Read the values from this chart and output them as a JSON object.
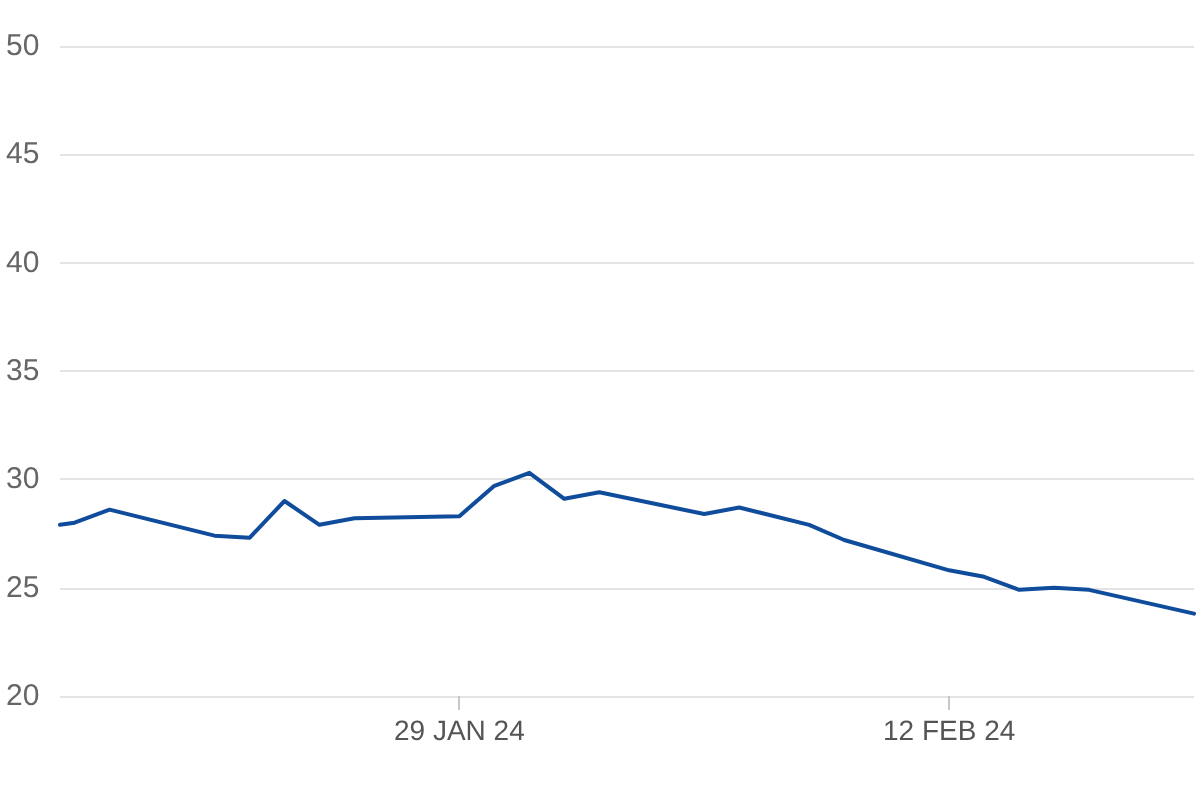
{
  "chart_data": {
    "type": "line",
    "x": [
      "2024-01-17T14:00",
      "2024-01-18",
      "2024-01-19",
      "2024-01-22",
      "2024-01-23",
      "2024-01-24",
      "2024-01-25",
      "2024-01-26",
      "2024-01-29",
      "2024-01-30",
      "2024-01-31",
      "2024-02-01",
      "2024-02-02",
      "2024-02-05",
      "2024-02-06",
      "2024-02-08",
      "2024-02-09",
      "2024-02-12",
      "2024-02-13",
      "2024-02-14",
      "2024-02-15",
      "2024-02-16",
      "2024-02-19"
    ],
    "values": [
      27.9,
      28.0,
      28.6,
      27.4,
      27.3,
      29.0,
      27.9,
      28.2,
      28.3,
      29.7,
      30.3,
      29.1,
      29.4,
      28.4,
      28.7,
      27.9,
      27.2,
      25.8,
      25.5,
      24.9,
      25.0,
      24.9,
      23.8
    ],
    "color": "#0f4c9b",
    "xlim": [
      "2024-01-17T14:00",
      "2024-02-19"
    ],
    "xticks": [
      {
        "value": "2024-01-29",
        "label": "29 JAN 24"
      },
      {
        "value": "2024-02-12",
        "label": "12 FEB 24"
      }
    ],
    "ylim": [
      20,
      50
    ],
    "yticks": [
      20,
      25,
      30,
      35,
      40,
      45,
      50
    ],
    "grid": "y",
    "marker": "none"
  }
}
